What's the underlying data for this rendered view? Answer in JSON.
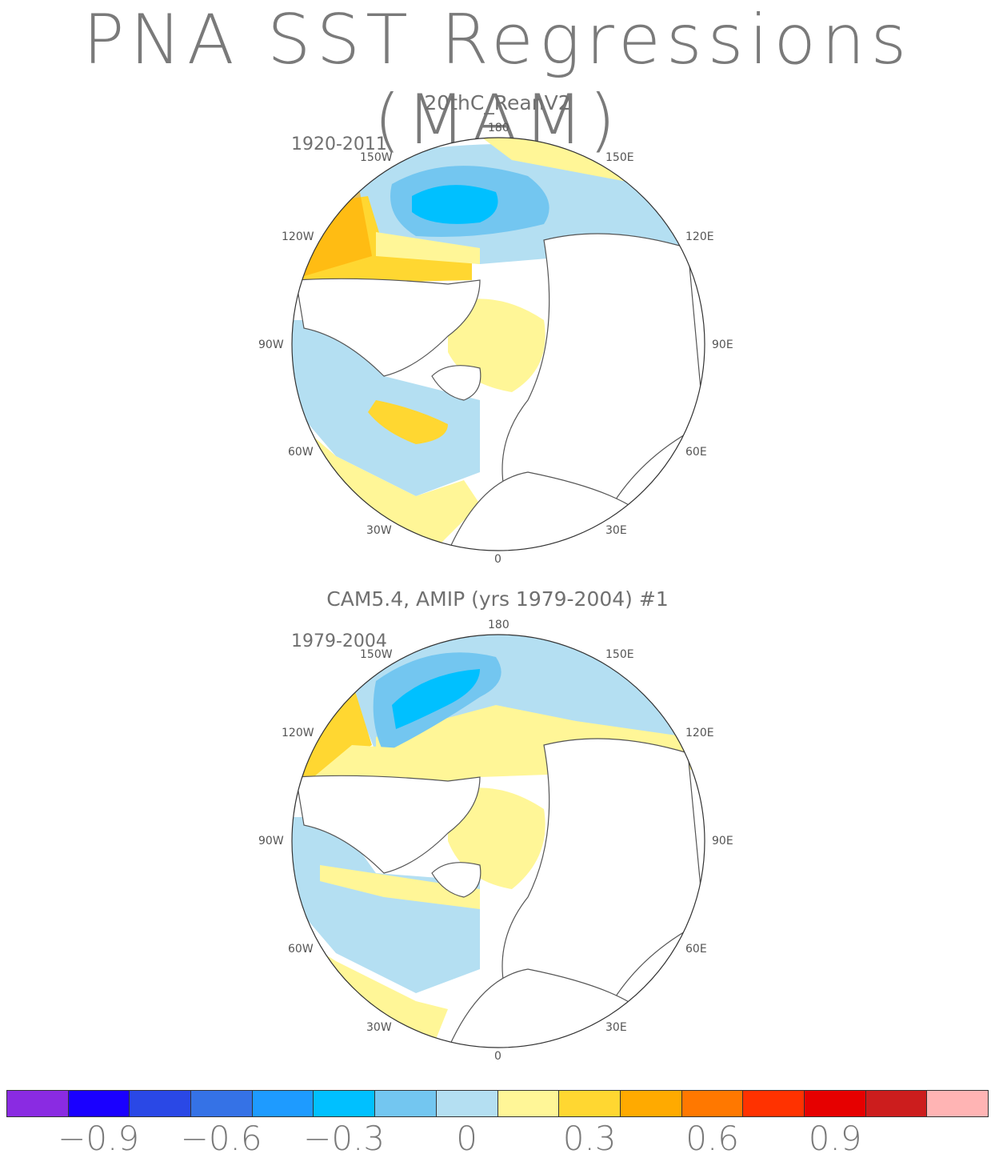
{
  "title": "PNA SST Regressions (MAM)",
  "panels": [
    {
      "title": "20thC_ReanV2",
      "years": "1920-2011",
      "lon_labels": {
        "top": "180",
        "bottom": "0",
        "left1": "150W",
        "left2": "120W",
        "left3": "90W",
        "left4": "60W",
        "left5": "30W",
        "right1": "150E",
        "right2": "120E",
        "right3": "90E",
        "right4": "60E",
        "right5": "30E"
      }
    },
    {
      "title": "CAM5.4, AMIP (yrs 1979-2004)     #1",
      "years": "1979-2004",
      "lon_labels": {
        "top": "180",
        "bottom": "0",
        "left1": "150W",
        "left2": "120W",
        "left3": "90W",
        "left4": "60W",
        "left5": "30W",
        "right1": "150E",
        "right2": "120E",
        "right3": "90E",
        "right4": "60E",
        "right5": "30E"
      }
    }
  ],
  "colorbar": {
    "colors": [
      "#8a2be2",
      "#1a00ff",
      "#2a48e6",
      "#3572e6",
      "#1e9bff",
      "#00c0ff",
      "#73c6f0",
      "#b4dff2",
      "#fff697",
      "#ffd731",
      "#ffaa00",
      "#ff7800",
      "#ff3200",
      "#e60000",
      "#cc1d1d",
      "#ffb4b4"
    ],
    "ticks": [
      "−0.9",
      "−0.6",
      "−0.3",
      "0",
      "0.3",
      "0.6",
      "0.9"
    ]
  }
}
